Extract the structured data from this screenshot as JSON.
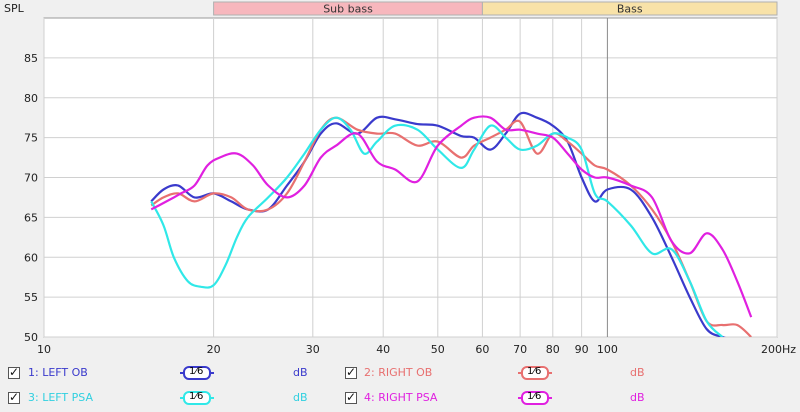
{
  "chart_data": {
    "type": "line",
    "ylabel": "SPL",
    "x_scale": "log",
    "xlim": [
      10,
      200
    ],
    "ylim": [
      50,
      90
    ],
    "x_ticks": [
      {
        "v": 10,
        "label": "10"
      },
      {
        "v": 20,
        "label": "20"
      },
      {
        "v": 30,
        "label": "30"
      },
      {
        "v": 40,
        "label": "40"
      },
      {
        "v": 50,
        "label": "50"
      },
      {
        "v": 60,
        "label": "60"
      },
      {
        "v": 70,
        "label": "70"
      },
      {
        "v": 80,
        "label": "80"
      },
      {
        "v": 90,
        "label": "90"
      },
      {
        "v": 100,
        "label": "100"
      },
      {
        "v": 200,
        "label": "200Hz"
      }
    ],
    "y_ticks": [
      50,
      55,
      60,
      65,
      70,
      75,
      80,
      85
    ],
    "bands": [
      {
        "name": "Sub bass",
        "from": 20,
        "to": 60,
        "color": "#f7b7bd"
      },
      {
        "name": "Bass",
        "from": 60,
        "to": 200,
        "color": "#f8e2a8"
      }
    ],
    "series": [
      {
        "name": "1: LEFT OB",
        "color": "#3a3acc",
        "x": [
          15.5,
          16.3,
          17.3,
          18.5,
          20,
          21.5,
          23,
          25,
          27,
          29,
          31,
          33,
          36,
          39,
          42,
          46,
          50,
          55,
          58,
          62,
          66,
          70,
          75,
          80,
          85,
          90,
          95,
          100,
          110,
          120,
          130,
          140,
          150,
          160,
          170
        ],
        "y": [
          67,
          68.5,
          69,
          67.5,
          68,
          67,
          66,
          66,
          69,
          72,
          75.5,
          76.8,
          75.5,
          77.5,
          77.3,
          76.7,
          76.5,
          75.2,
          75,
          73.5,
          75.5,
          78,
          77.5,
          76.5,
          74.5,
          70,
          67,
          68.5,
          68.5,
          65,
          60,
          55,
          51,
          50,
          49.5
        ]
      },
      {
        "name": "2: RIGHT OB",
        "color": "#e87070",
        "x": [
          15.5,
          16.3,
          17.3,
          18.5,
          20,
          21.5,
          23,
          25,
          27,
          29,
          31,
          33,
          36,
          39,
          42,
          46,
          50,
          55,
          58,
          62,
          66,
          70,
          75,
          80,
          85,
          90,
          95,
          100,
          110,
          120,
          130,
          140,
          150,
          160,
          170,
          180
        ],
        "y": [
          66.5,
          67.5,
          68,
          67,
          68,
          67.5,
          66,
          66,
          68,
          72,
          76,
          77.5,
          76,
          75.5,
          75.5,
          74,
          74.5,
          72.5,
          74,
          75,
          76,
          77,
          73,
          75.5,
          74.5,
          73,
          71.5,
          71,
          69,
          66,
          62,
          57,
          52,
          51.5,
          51.5,
          50
        ]
      },
      {
        "name": "3: LEFT PSA",
        "color": "#30e8e8",
        "x": [
          15.5,
          16.3,
          17,
          18,
          19,
          20,
          21,
          22,
          23,
          25,
          27,
          29,
          31,
          33,
          35,
          37,
          39,
          42,
          46,
          50,
          55,
          58,
          62,
          66,
          70,
          75,
          80,
          85,
          90,
          95,
          100,
          110,
          120,
          130,
          140,
          150,
          160
        ],
        "y": [
          67,
          64,
          60,
          57,
          56.3,
          56.5,
          59,
          62.5,
          65,
          67.5,
          70,
          73,
          76,
          77.5,
          76,
          73,
          74.5,
          76.5,
          76,
          73.5,
          71.2,
          73.5,
          76.5,
          75,
          73.5,
          74,
          75.5,
          75,
          73.5,
          68,
          67,
          64,
          60.5,
          61,
          57,
          52,
          50
        ]
      },
      {
        "name": "4: RIGHT PSA",
        "color": "#e020e0",
        "x": [
          15.5,
          16.5,
          17.5,
          18.5,
          19.5,
          20.5,
          22,
          23.5,
          25,
          27,
          29,
          31,
          33,
          36,
          39,
          42,
          46,
          50,
          55,
          58,
          62,
          66,
          70,
          75,
          80,
          85,
          90,
          95,
          100,
          110,
          120,
          130,
          140,
          150,
          160,
          170,
          180
        ],
        "y": [
          66,
          67,
          68,
          69,
          71.5,
          72.5,
          73,
          71.5,
          69,
          67.5,
          69,
          72.5,
          74,
          75.5,
          72,
          71,
          69.5,
          74,
          76.5,
          77.5,
          77.5,
          76,
          76,
          75.5,
          75,
          73,
          71,
          70,
          70,
          69,
          67.5,
          62,
          60.5,
          63,
          61,
          57,
          52.5
        ]
      }
    ]
  },
  "legend": [
    {
      "label": "1: LEFT OB",
      "smoothing": "1⁄6",
      "unit": "dB",
      "color": "#3a3acc",
      "checked": true
    },
    {
      "label": "2: RIGHT OB",
      "smoothing": "1⁄6",
      "unit": "dB",
      "color": "#e87070",
      "checked": true
    },
    {
      "label": "3: LEFT PSA",
      "smoothing": "1⁄6",
      "unit": "dB",
      "color": "#30e8e8",
      "checked": true
    },
    {
      "label": "4: RIGHT PSA",
      "smoothing": "1⁄6",
      "unit": "dB",
      "color": "#e020e0",
      "checked": true
    }
  ]
}
